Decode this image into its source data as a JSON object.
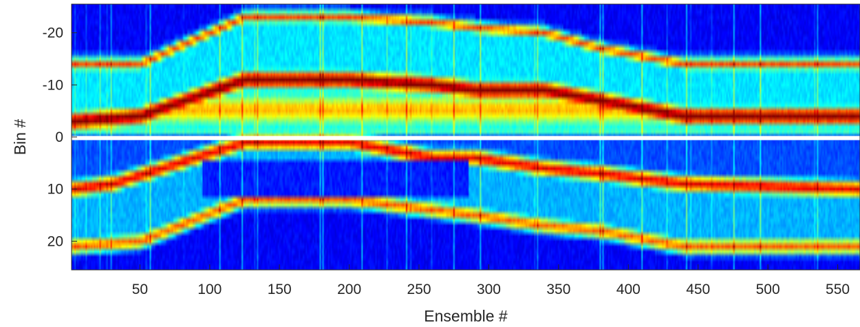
{
  "chart_data": {
    "type": "heatmap",
    "colormap": "jet",
    "xlabel": "Ensemble #",
    "ylabel": "Bin #",
    "xlim": [
      1,
      566
    ],
    "ylim": [
      -25.5,
      25.5
    ],
    "y_reversed": true,
    "grid": false,
    "xticks": [
      50,
      100,
      150,
      200,
      250,
      300,
      350,
      400,
      450,
      500,
      550
    ],
    "yticks": [
      -20,
      -10,
      0,
      10,
      20
    ],
    "gap_bins": [
      0,
      1
    ],
    "bands": [
      {
        "name": "upper-dark-red",
        "value": 1.0,
        "width": 1.6,
        "path": [
          [
            1,
            -3
          ],
          [
            50,
            -4
          ],
          [
            125,
            -11
          ],
          [
            200,
            -11
          ],
          [
            260,
            -10
          ],
          [
            290,
            -9
          ],
          [
            340,
            -9
          ],
          [
            380,
            -7
          ],
          [
            440,
            -4
          ],
          [
            566,
            -4
          ]
        ]
      },
      {
        "name": "upper-orange",
        "value": 0.8,
        "width": 1.0,
        "path": [
          [
            1,
            -14
          ],
          [
            50,
            -14
          ],
          [
            125,
            -23
          ],
          [
            200,
            -23
          ],
          [
            260,
            -22
          ],
          [
            290,
            -21
          ],
          [
            340,
            -20
          ],
          [
            380,
            -17
          ],
          [
            440,
            -14
          ],
          [
            566,
            -14
          ]
        ]
      },
      {
        "name": "lower-red",
        "value": 0.9,
        "width": 1.4,
        "path": [
          [
            1,
            10
          ],
          [
            30,
            9
          ],
          [
            125,
            1
          ],
          [
            200,
            1
          ],
          [
            260,
            4
          ],
          [
            290,
            4
          ],
          [
            340,
            6
          ],
          [
            380,
            7
          ],
          [
            440,
            9
          ],
          [
            566,
            10
          ]
        ]
      },
      {
        "name": "lower-orange",
        "value": 0.78,
        "width": 1.3,
        "path": [
          [
            1,
            21
          ],
          [
            50,
            20
          ],
          [
            125,
            12
          ],
          [
            200,
            12
          ],
          [
            260,
            14
          ],
          [
            290,
            15
          ],
          [
            340,
            17
          ],
          [
            380,
            18
          ],
          [
            440,
            21
          ],
          [
            566,
            21
          ]
        ]
      }
    ],
    "lows": [
      {
        "name": "central-blue",
        "value": 0.1,
        "x_range": [
          95,
          285
        ],
        "y_range": [
          5,
          11
        ]
      }
    ]
  }
}
